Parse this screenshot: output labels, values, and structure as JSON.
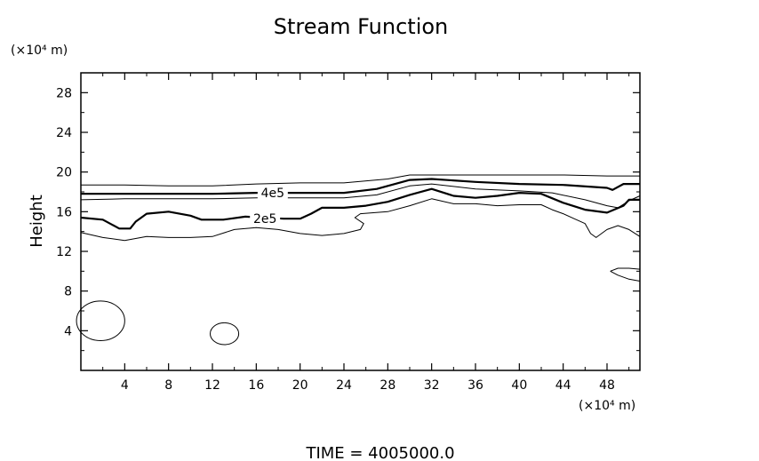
{
  "chart_data": {
    "type": "contour",
    "title": "Stream Function",
    "ylabel": "Height",
    "x_unit_label": "(×10⁴ m)",
    "y_unit_label": "(×10⁴ m)",
    "xlim": [
      0,
      51
    ],
    "ylim": [
      0,
      30
    ],
    "x_ticks": [
      4,
      8,
      12,
      16,
      20,
      24,
      28,
      32,
      36,
      40,
      44,
      48
    ],
    "y_ticks": [
      4,
      8,
      12,
      16,
      20,
      24,
      28
    ],
    "grid": false,
    "contour_labels": [
      {
        "text": "4e5",
        "x": 17.5,
        "y": 17.9
      },
      {
        "text": "2e5",
        "x": 16.8,
        "y": 15.3
      }
    ],
    "contours": [
      {
        "name": "upper-thin-top",
        "weight": "thin",
        "closed": false,
        "points": [
          [
            0,
            18.7
          ],
          [
            4,
            18.7
          ],
          [
            8,
            18.6
          ],
          [
            12,
            18.6
          ],
          [
            16,
            18.8
          ],
          [
            20,
            18.9
          ],
          [
            24,
            18.9
          ],
          [
            28,
            19.3
          ],
          [
            30,
            19.7
          ],
          [
            32,
            19.7
          ],
          [
            36,
            19.7
          ],
          [
            40,
            19.7
          ],
          [
            44,
            19.7
          ],
          [
            48,
            19.6
          ],
          [
            51,
            19.6
          ]
        ]
      },
      {
        "name": "thick-4e5",
        "weight": "thick",
        "closed": false,
        "points": [
          [
            0,
            17.8
          ],
          [
            4,
            17.8
          ],
          [
            8,
            17.8
          ],
          [
            12,
            17.8
          ],
          [
            16,
            17.9
          ],
          [
            19,
            17.9
          ],
          [
            24,
            17.9
          ],
          [
            27,
            18.3
          ],
          [
            30,
            19.2
          ],
          [
            32,
            19.3
          ],
          [
            36,
            19.0
          ],
          [
            40,
            18.8
          ],
          [
            44,
            18.7
          ],
          [
            48,
            18.4
          ],
          [
            48.5,
            18.2
          ],
          [
            49.5,
            18.8
          ],
          [
            51,
            18.8
          ]
        ]
      },
      {
        "name": "upper-thin-bottom",
        "weight": "thin",
        "closed": false,
        "points": [
          [
            0,
            17.2
          ],
          [
            4,
            17.3
          ],
          [
            8,
            17.3
          ],
          [
            12,
            17.3
          ],
          [
            16,
            17.4
          ],
          [
            20,
            17.4
          ],
          [
            24,
            17.4
          ],
          [
            27,
            17.7
          ],
          [
            30,
            18.6
          ],
          [
            32,
            18.8
          ],
          [
            36,
            18.3
          ],
          [
            40,
            18.1
          ],
          [
            43,
            17.9
          ],
          [
            46,
            17.2
          ],
          [
            48,
            16.6
          ],
          [
            49,
            16.4
          ],
          [
            50,
            17.1
          ],
          [
            51,
            17.6
          ]
        ]
      },
      {
        "name": "thick-2e5",
        "weight": "thick",
        "closed": false,
        "points": [
          [
            0,
            15.4
          ],
          [
            2,
            15.2
          ],
          [
            3.5,
            14.3
          ],
          [
            4.5,
            14.3
          ],
          [
            5,
            15.0
          ],
          [
            6,
            15.8
          ],
          [
            8,
            16.0
          ],
          [
            10,
            15.6
          ],
          [
            11,
            15.2
          ],
          [
            13,
            15.2
          ],
          [
            15,
            15.5
          ],
          [
            18.5,
            15.3
          ],
          [
            20,
            15.3
          ],
          [
            21,
            15.8
          ],
          [
            22,
            16.4
          ],
          [
            24,
            16.4
          ],
          [
            26,
            16.6
          ],
          [
            28,
            17.0
          ],
          [
            30,
            17.7
          ],
          [
            32,
            18.3
          ],
          [
            34,
            17.6
          ],
          [
            36,
            17.4
          ],
          [
            38,
            17.6
          ],
          [
            40,
            17.9
          ],
          [
            42,
            17.8
          ],
          [
            44,
            16.9
          ],
          [
            46,
            16.2
          ],
          [
            48,
            15.9
          ],
          [
            49.5,
            16.6
          ],
          [
            50,
            17.2
          ],
          [
            51,
            17.2
          ]
        ]
      },
      {
        "name": "thin-lower",
        "weight": "thin",
        "closed": false,
        "points": [
          [
            0,
            13.9
          ],
          [
            2,
            13.4
          ],
          [
            4,
            13.1
          ],
          [
            6,
            13.5
          ],
          [
            8,
            13.4
          ],
          [
            10,
            13.4
          ],
          [
            12,
            13.5
          ],
          [
            14,
            14.2
          ],
          [
            16,
            14.4
          ],
          [
            18,
            14.2
          ],
          [
            20,
            13.8
          ],
          [
            22,
            13.6
          ],
          [
            24,
            13.8
          ],
          [
            25.5,
            14.2
          ],
          [
            25.8,
            14.8
          ],
          [
            25,
            15.4
          ],
          [
            25.5,
            15.8
          ],
          [
            28,
            16.0
          ],
          [
            30,
            16.6
          ],
          [
            32,
            17.3
          ],
          [
            34,
            16.8
          ],
          [
            36,
            16.8
          ],
          [
            38,
            16.6
          ],
          [
            40,
            16.7
          ],
          [
            42,
            16.7
          ],
          [
            43,
            16.2
          ],
          [
            44,
            15.8
          ],
          [
            45,
            15.3
          ],
          [
            46,
            14.8
          ],
          [
            46.5,
            13.8
          ],
          [
            47,
            13.4
          ],
          [
            48,
            14.2
          ],
          [
            49,
            14.6
          ],
          [
            50,
            14.2
          ],
          [
            51,
            13.5
          ]
        ]
      },
      {
        "name": "right-small-loop",
        "weight": "thin",
        "closed": false,
        "points": [
          [
            48.3,
            10.0
          ],
          [
            49,
            10.3
          ],
          [
            50,
            10.3
          ],
          [
            51,
            10.2
          ],
          [
            51,
            9.0
          ],
          [
            50,
            9.2
          ],
          [
            49,
            9.6
          ],
          [
            48.3,
            10.0
          ]
        ]
      },
      {
        "name": "left-ellipse",
        "weight": "thin",
        "closed": true,
        "cx": 1.8,
        "cy": 5.0,
        "rx": 2.2,
        "ry": 2.0
      },
      {
        "name": "center-ellipse",
        "weight": "thin",
        "closed": true,
        "cx": 13.1,
        "cy": 3.7,
        "rx": 1.3,
        "ry": 1.1
      }
    ]
  },
  "footer": {
    "time_label": "TIME = 4005000.0"
  }
}
